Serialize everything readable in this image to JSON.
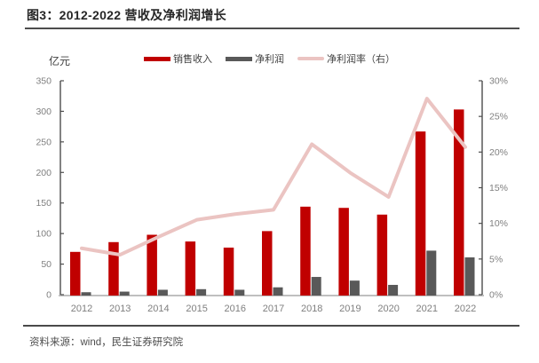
{
  "header": {
    "title": "图3：2012-2022 营收及净利润增长"
  },
  "footer": {
    "source": "资料来源：wind，民生证券研究院"
  },
  "chart_data": {
    "type": "bar",
    "title": "图3：2012-2022 营收及净利润增长",
    "unit_label": "亿元",
    "categories": [
      "2012",
      "2013",
      "2014",
      "2015",
      "2016",
      "2017",
      "2018",
      "2019",
      "2020",
      "2021",
      "2022"
    ],
    "series": [
      {
        "name": "销售收入",
        "type": "bar",
        "axis": "left",
        "color": "#c00000",
        "values": [
          70,
          86,
          98,
          87,
          77,
          104,
          144,
          142,
          131,
          267,
          303
        ]
      },
      {
        "name": "净利润",
        "type": "bar",
        "axis": "left",
        "color": "#595959",
        "values": [
          4,
          5,
          8,
          9,
          8,
          12,
          29,
          23,
          16,
          72,
          61
        ]
      },
      {
        "name": "净利润率（右）",
        "type": "line",
        "axis": "right",
        "color": "#ebc4c2",
        "values": [
          6.5,
          5.6,
          8.1,
          10.5,
          11.3,
          11.9,
          21.1,
          17.1,
          13.7,
          27.5,
          20.7
        ]
      }
    ],
    "left_axis": {
      "min": 0,
      "max": 350,
      "step": 50,
      "tick_labels": [
        "0",
        "50",
        "100",
        "150",
        "200",
        "250",
        "300",
        "350"
      ]
    },
    "right_axis": {
      "min": 0,
      "max": 30,
      "step": 5,
      "tick_labels": [
        "0%",
        "5%",
        "10%",
        "15%",
        "20%",
        "25%",
        "30%"
      ]
    },
    "legend_position": "top",
    "grid": false,
    "colors": {
      "axis_dark": "#4d4d4d",
      "axis_light": "#bfbfbf",
      "tick_text": "#7f7f7f"
    }
  }
}
